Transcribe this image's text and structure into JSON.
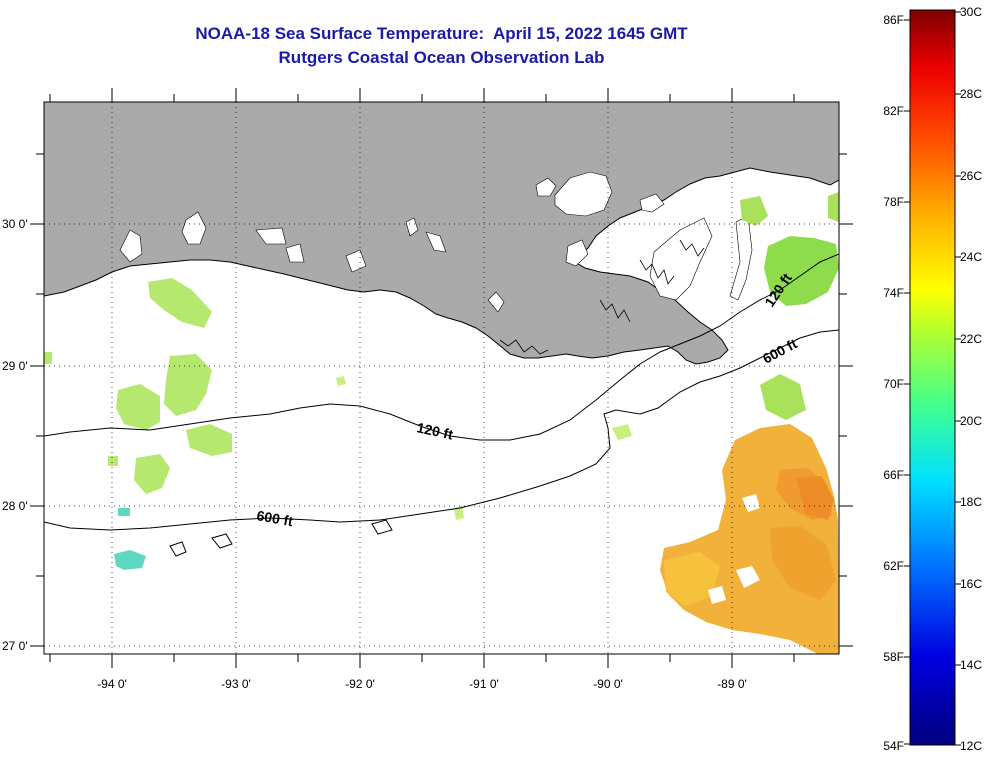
{
  "title": {
    "line1": "NOAA-18 Sea Surface Temperature:  April 15, 2022 1645 GMT",
    "line2": "Rutgers Coastal Ocean Observation Lab"
  },
  "map": {
    "lon_ticks": [
      "-94 0'",
      "-93 0'",
      "-92 0'",
      "-91 0'",
      "-90 0'",
      "-89 0'"
    ],
    "lat_ticks": [
      "30 0'",
      "29 0'",
      "28 0'",
      "27 0'"
    ],
    "contour_labels": {
      "c120_west": "120 ft",
      "c120_east": "120 ft",
      "c600_west": "600 ft",
      "c600_east": "600 ft"
    },
    "land_color": "#aaaaaa",
    "water_color": "#ffffff"
  },
  "colorbar": {
    "fahrenheit_labels": [
      "86F",
      "82F",
      "78F",
      "74F",
      "70F",
      "66F",
      "62F",
      "58F",
      "54F"
    ],
    "celsius_labels": [
      "30C",
      "28C",
      "26C",
      "24C",
      "22C",
      "20C",
      "18C",
      "16C",
      "14C",
      "12C"
    ]
  }
}
